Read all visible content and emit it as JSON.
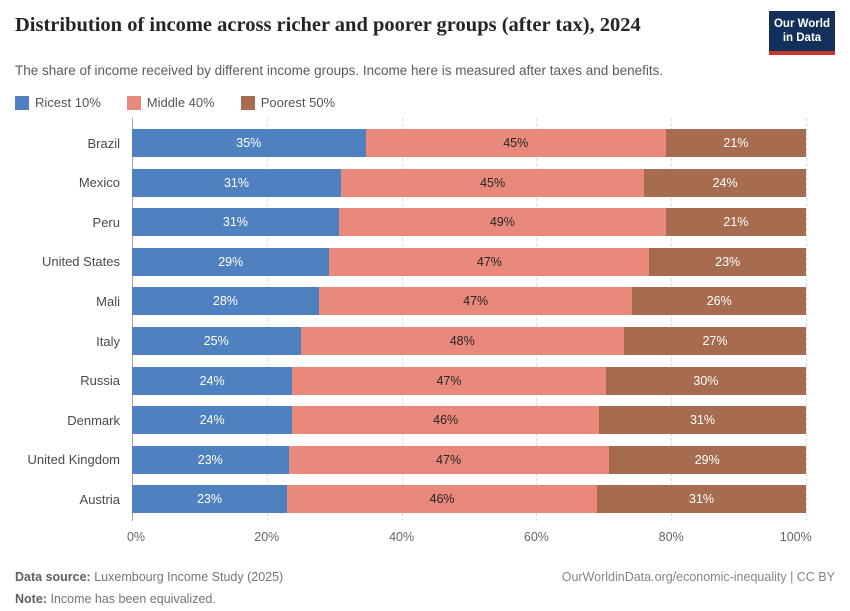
{
  "header": {
    "title": "Distribution of income across richer and poorer groups (after tax), 2024",
    "subtitle": "The share of income received by different income groups. Income here is measured after taxes and benefits.",
    "logo": {
      "line1": "Our World",
      "line2": "in Data",
      "bg_color": "#12305B",
      "accent_color": "#C7372D"
    }
  },
  "chart_data": {
    "type": "bar",
    "orientation": "horizontal",
    "stacked": true,
    "grid": true,
    "legend_position": "top",
    "title": "Distribution of income across richer and poorer groups (after tax), 2024",
    "xlabel": "",
    "ylabel": "",
    "xlim": [
      0,
      100
    ],
    "x_ticks": [
      "0%",
      "20%",
      "40%",
      "60%",
      "80%",
      "100%"
    ],
    "value_suffix": "%",
    "categories": [
      "Brazil",
      "Mexico",
      "Peru",
      "United States",
      "Mali",
      "Italy",
      "Russia",
      "Denmark",
      "United Kingdom",
      "Austria"
    ],
    "series": [
      {
        "name": "Ricest 10%",
        "color": "#4F80C0",
        "label_color": "#ffffff",
        "values": [
          35,
          31,
          31,
          29,
          28,
          25,
          24,
          24,
          23,
          23
        ]
      },
      {
        "name": "Middle 40%",
        "color": "#E8897B",
        "label_color": "#262626",
        "values": [
          45,
          45,
          49,
          47,
          47,
          48,
          47,
          46,
          47,
          46
        ]
      },
      {
        "name": "Poorest 50%",
        "color": "#A76C4F",
        "label_color": "#ffffff",
        "values": [
          21,
          24,
          21,
          23,
          26,
          27,
          30,
          31,
          29,
          31
        ]
      }
    ]
  },
  "footer": {
    "source_label": "Data source:",
    "source_value": "Luxembourg Income Study (2025)",
    "note_label": "Note:",
    "note_value": "Income has been equivalized.",
    "right_text": "OurWorldinData.org/economic-inequality | CC BY"
  }
}
